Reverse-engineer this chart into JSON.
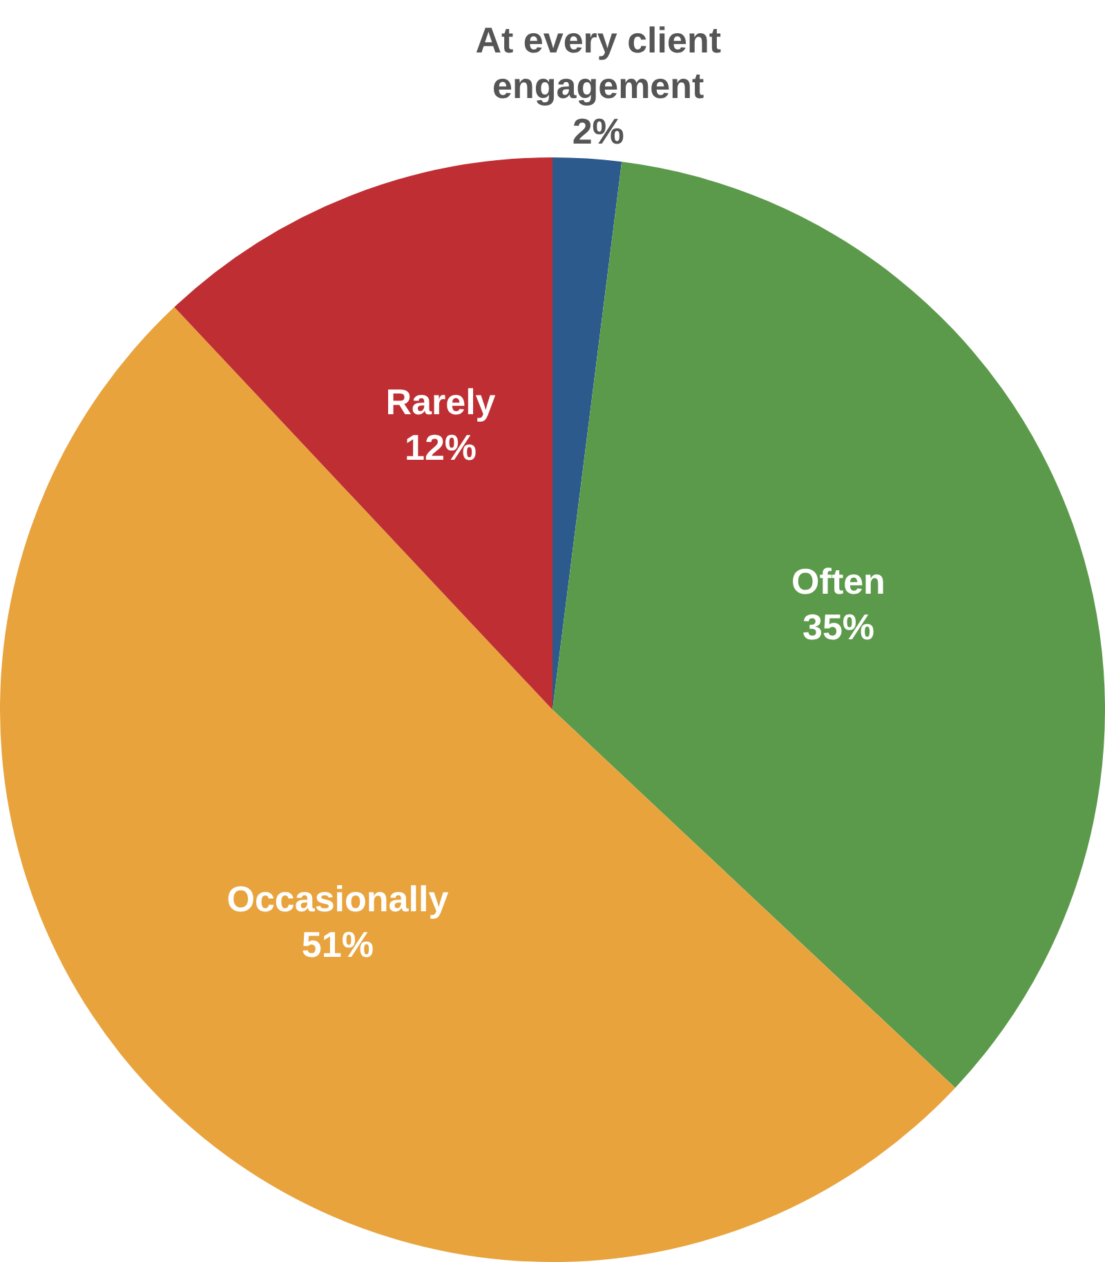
{
  "chart_data": {
    "type": "pie",
    "categories": [
      "At every client engagement",
      "Often",
      "Occasionally",
      "Rarely"
    ],
    "values": [
      2,
      35,
      51,
      12
    ],
    "value_labels": [
      "2%",
      "35%",
      "51%",
      "12%"
    ],
    "colors": [
      "#2c5a8c",
      "#5c9a4b",
      "#e8a33d",
      "#bf2e32"
    ],
    "legend": false
  }
}
